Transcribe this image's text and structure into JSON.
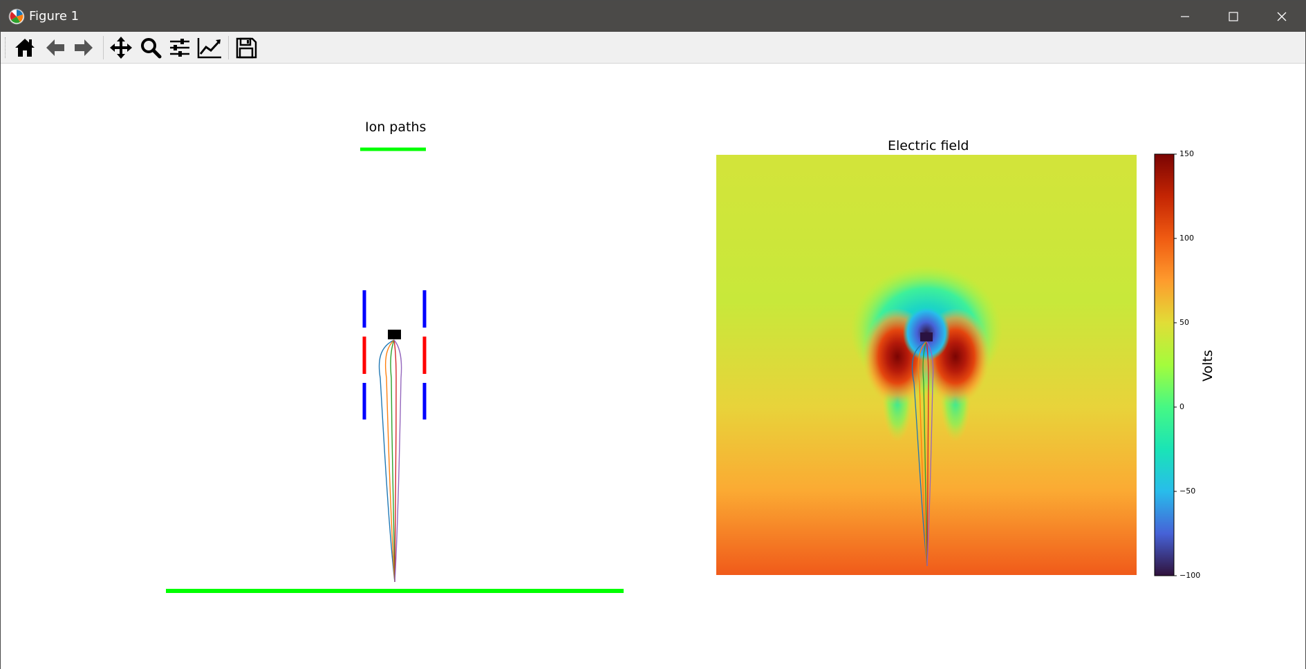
{
  "window": {
    "title": "Figure 1",
    "icons": {
      "app": "matplotlib-icon",
      "minimize": "minimize-icon",
      "maximize": "maximize-icon",
      "close": "close-icon"
    },
    "titlebar_color": "#4b4a48"
  },
  "toolbar": {
    "buttons": [
      {
        "name": "home-button",
        "icon": "home-icon"
      },
      {
        "name": "back-button",
        "icon": "arrow-left-icon"
      },
      {
        "name": "forward-button",
        "icon": "arrow-right-icon"
      },
      {
        "name": "pan-button",
        "icon": "move-icon"
      },
      {
        "name": "zoom-button",
        "icon": "magnifier-icon"
      },
      {
        "name": "subplots-button",
        "icon": "sliders-icon"
      },
      {
        "name": "edit-axes-button",
        "icon": "line-chart-icon"
      },
      {
        "name": "save-button",
        "icon": "floppy-disk-icon"
      }
    ]
  },
  "left_plot": {
    "title": "Ion paths",
    "colors": {
      "ground_electrode": "#00ff00",
      "lens_blue": "#0000ff",
      "lens_red": "#ff0000",
      "source": "#000000"
    },
    "trajectory_colors": [
      "#1f77b4",
      "#ff7f0e",
      "#2ca02c",
      "#d62728",
      "#9467bd"
    ]
  },
  "right_plot": {
    "title": "Electric field",
    "colorbar": {
      "label": "Volts",
      "ticks": [
        "150",
        "100",
        "50",
        "0",
        "−50",
        "−100"
      ],
      "range": [
        -100,
        150
      ],
      "colormap": "turbo"
    }
  }
}
